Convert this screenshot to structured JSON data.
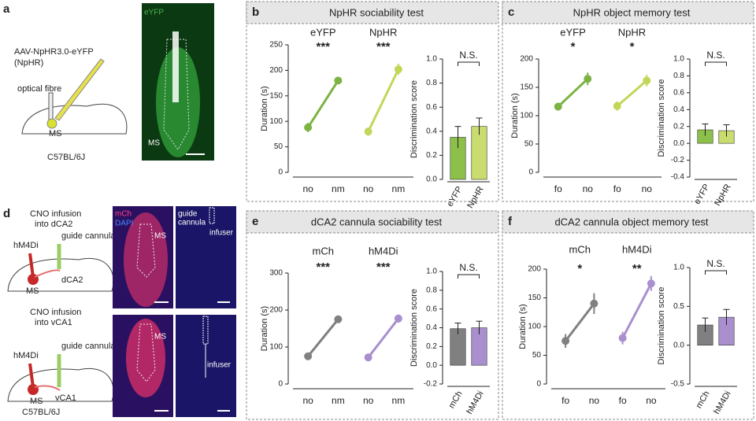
{
  "panel_a": {
    "label": "a",
    "virus": "AAV-NpHR3.0-eYFP",
    "virus_name": "(NpHR)",
    "fibre": "optical fibre",
    "region": "MS",
    "strain": "C57BL/6J",
    "image_channel": "eYFP",
    "image_region": "MS"
  },
  "panel_d": {
    "label": "d",
    "top": {
      "infusion": [
        "CNO infusion",
        "into dCA2"
      ],
      "virus": "hM4Di",
      "cannula": "guide cannula",
      "target": "dCA2",
      "region": "MS",
      "image_channels": [
        "mCh",
        "DAPI"
      ],
      "image_region": "MS",
      "image2_labels": [
        "guide",
        "cannula",
        "infuser"
      ]
    },
    "bottom": {
      "infusion": [
        "CNO infusion",
        "into vCA1"
      ],
      "virus": "hM4Di",
      "cannula": "guide cannula",
      "target": "vCA1",
      "region": "MS",
      "strain": "C57BL/6J",
      "image_region": "MS",
      "image2_label": "infuser"
    }
  },
  "panel_labels": [
    "b",
    "c",
    "e",
    "f"
  ],
  "chart_data": [
    {
      "type": "line",
      "title": "NpHR sociability test",
      "categories": [
        "no",
        "nm",
        "no",
        "nm"
      ],
      "ylabel": "Duration (s)",
      "ylim": [
        0,
        250
      ],
      "yticks": [
        0,
        50,
        100,
        150,
        200,
        250
      ],
      "series": [
        {
          "name": "eYFP",
          "color": "#7cb342",
          "values": [
            88,
            180,
            null,
            null
          ],
          "errors": [
            9,
            5,
            null,
            null
          ],
          "significance": "***"
        },
        {
          "name": "NpHR",
          "color": "#c3d65a",
          "values": [
            null,
            null,
            80,
            202
          ],
          "errors": [
            null,
            null,
            8,
            11
          ],
          "significance": "***"
        }
      ]
    },
    {
      "type": "bar",
      "categories": [
        "eYFP",
        "NpHR"
      ],
      "values": [
        0.35,
        0.44
      ],
      "errors": [
        0.09,
        0.07
      ],
      "colors": [
        "#8cc04a",
        "#c9dc6e"
      ],
      "ylabel": "Discrimination score",
      "ylim": [
        0,
        1
      ],
      "yticks": [
        {
          "value": 0,
          "label": "0.0"
        },
        0.2,
        0.4,
        0.6,
        0.8,
        {
          "value": 1,
          "label": "1.0"
        }
      ],
      "annotation": "N.S."
    },
    {
      "type": "line",
      "title": "NpHR object memory test",
      "categories": [
        "fo",
        "no",
        "fo",
        "no"
      ],
      "ylabel": "Duration (s)",
      "ylim": [
        0,
        200
      ],
      "yticks": [
        0,
        50,
        100,
        150,
        200
      ],
      "series": [
        {
          "name": "eYFP",
          "color": "#7cb342",
          "values": [
            116,
            165,
            null,
            null
          ],
          "errors": [
            7,
            11,
            null,
            null
          ],
          "significance": "*"
        },
        {
          "name": "NpHR",
          "color": "#c3d65a",
          "values": [
            null,
            null,
            117,
            162
          ],
          "errors": [
            null,
            null,
            8,
            10
          ],
          "significance": "*"
        }
      ]
    },
    {
      "type": "bar",
      "categories": [
        "eYFP",
        "NpHR"
      ],
      "values": [
        0.16,
        0.15
      ],
      "errors": [
        0.07,
        0.07
      ],
      "colors": [
        "#8cc04a",
        "#c9dc6e"
      ],
      "ylabel": "Discrimination score",
      "ylim": [
        -0.4,
        1
      ],
      "yticks": [
        -0.4,
        -0.2,
        {
          "value": 0,
          "label": "0.0"
        },
        0.2,
        0.4,
        0.6,
        0.8,
        {
          "value": 1,
          "label": "1.0"
        }
      ],
      "annotation": "N.S."
    },
    {
      "type": "line",
      "title": "dCA2 cannula sociability test",
      "categories": [
        "no",
        "nm",
        "no",
        "nm"
      ],
      "ylabel": "Duration (s)",
      "ylim": [
        0,
        300
      ],
      "yticks": [
        0,
        100,
        200,
        300
      ],
      "series": [
        {
          "name": "mCh",
          "color": "#808080",
          "values": [
            75,
            175,
            null,
            null
          ],
          "errors": [
            6,
            10,
            null,
            null
          ],
          "significance": "***"
        },
        {
          "name": "hM4Di",
          "color": "#a98fce",
          "values": [
            null,
            null,
            72,
            177
          ],
          "errors": [
            null,
            null,
            6,
            11
          ],
          "significance": "***"
        }
      ]
    },
    {
      "type": "bar",
      "categories": [
        "mCh",
        "hM4Di"
      ],
      "values": [
        0.39,
        0.4
      ],
      "errors": [
        0.06,
        0.07
      ],
      "colors": [
        "#808080",
        "#a98fce"
      ],
      "ylabel": "Discrimination score",
      "ylim": [
        -0.2,
        1
      ],
      "yticks": [
        -0.2,
        {
          "value": 0,
          "label": "0.0"
        },
        0.2,
        0.4,
        0.6,
        0.8,
        {
          "value": 1,
          "label": "1.0"
        }
      ],
      "annotation": "N.S."
    },
    {
      "type": "line",
      "title": "dCA2 cannula object memory test",
      "categories": [
        "fo",
        "no",
        "fo",
        "no"
      ],
      "ylabel": "Duration (s)",
      "ylim": [
        0,
        200
      ],
      "yticks": [
        0,
        50,
        100,
        150,
        200
      ],
      "series": [
        {
          "name": "mCh",
          "color": "#808080",
          "values": [
            75,
            140,
            null,
            null
          ],
          "errors": [
            12,
            18,
            null,
            null
          ],
          "significance": "*"
        },
        {
          "name": "hM4Di",
          "color": "#a98fce",
          "values": [
            null,
            null,
            80,
            175
          ],
          "errors": [
            null,
            null,
            11,
            13
          ],
          "significance": "**"
        }
      ]
    },
    {
      "type": "bar",
      "categories": [
        "mCh",
        "hM4Di"
      ],
      "values": [
        0.26,
        0.36
      ],
      "errors": [
        0.09,
        0.1
      ],
      "colors": [
        "#808080",
        "#a98fce"
      ],
      "ylabel": "Discrimination score",
      "ylim": [
        -0.5,
        1
      ],
      "yticks": [
        -0.5,
        {
          "value": 0,
          "label": "0.0"
        },
        0.5,
        {
          "value": 1,
          "label": "1.0"
        }
      ],
      "annotation": "N.S."
    }
  ]
}
